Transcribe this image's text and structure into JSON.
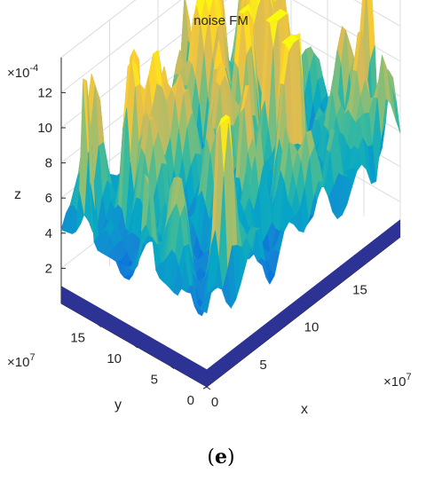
{
  "panel_label_open": "(",
  "panel_label_letter": "e",
  "panel_label_close": ")",
  "chart_data": {
    "type": "surface3d",
    "title": "noise FM",
    "xlabel": "x",
    "ylabel": "y",
    "zlabel": "z",
    "x_exponent_base": "×10",
    "x_exponent": "7",
    "y_exponent_base": "×10",
    "y_exponent": "7",
    "z_exponent_base": "×10",
    "z_exponent": "-4",
    "x_ticks": [
      0,
      5,
      10,
      15
    ],
    "y_ticks": [
      0,
      5,
      10,
      15
    ],
    "z_ticks": [
      2,
      4,
      6,
      8,
      10,
      12
    ],
    "xlim": [
      0,
      20
    ],
    "ylim": [
      0,
      20
    ],
    "zlim": [
      0,
      14
    ],
    "colormap": "parula",
    "colormap_stops": [
      "#352a87",
      "#0363e1",
      "#1485d4",
      "#06a7c6",
      "#38b99e",
      "#92bf73",
      "#d9ba56",
      "#fcce2e",
      "#f9fb0e"
    ],
    "grid": true,
    "peak_z_approx": 13.5,
    "base_z_approx": 1.0
  }
}
